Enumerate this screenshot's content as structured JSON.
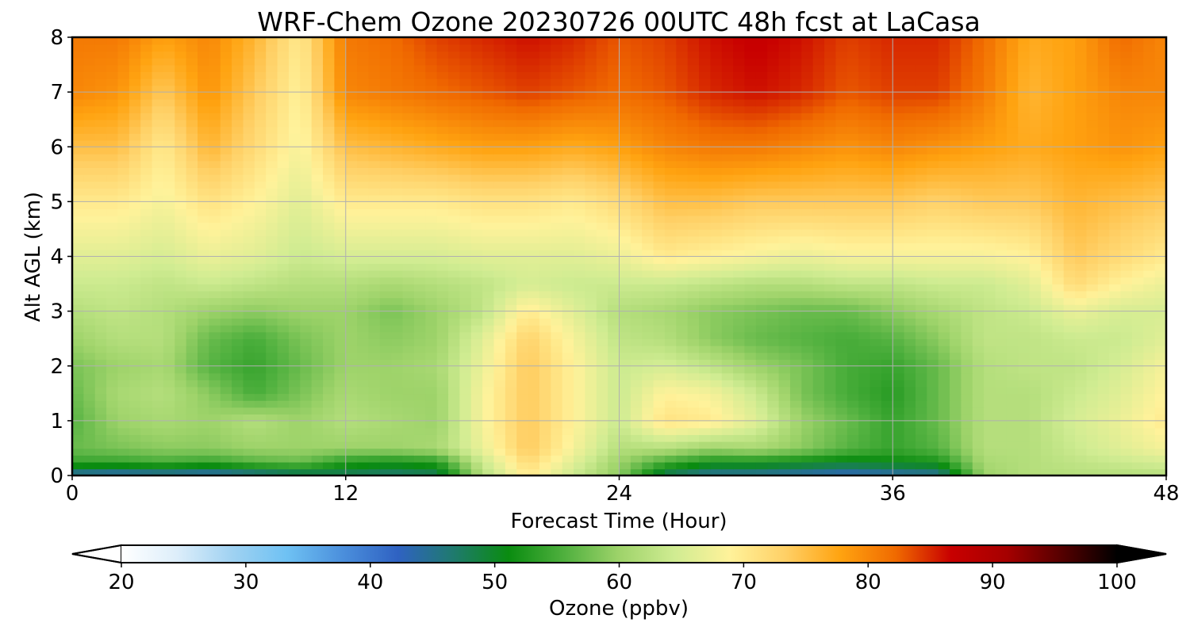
{
  "chart_data": {
    "type": "heatmap",
    "title": "WRF-Chem Ozone  20230726 00UTC 48h fcst at LaCasa",
    "xlabel": "Forecast Time (Hour)",
    "ylabel": "Alt AGL (km)",
    "xlim": [
      0,
      48
    ],
    "ylim": [
      0,
      8
    ],
    "xticks": [
      "0",
      "12",
      "24",
      "36",
      "48"
    ],
    "yticks": [
      "0",
      "1",
      "2",
      "3",
      "4",
      "5",
      "6",
      "7",
      "8"
    ],
    "grid": true,
    "x": [
      0,
      2,
      4,
      6,
      8,
      10,
      12,
      14,
      16,
      18,
      20,
      22,
      24,
      26,
      28,
      30,
      32,
      34,
      36,
      38,
      40,
      42,
      44,
      46,
      48
    ],
    "y": [
      0,
      0.25,
      0.5,
      1,
      1.5,
      2,
      2.5,
      3,
      3.5,
      4,
      5,
      6,
      7,
      8
    ],
    "z": [
      [
        43,
        42,
        43,
        42,
        44,
        46,
        47,
        46,
        47,
        62,
        70,
        64,
        59,
        47,
        44,
        44,
        43,
        42,
        43,
        44,
        60,
        62,
        62,
        62,
        62
      ],
      [
        54,
        54,
        55,
        54,
        56,
        57,
        53,
        52,
        53,
        64,
        72,
        66,
        60,
        55,
        52,
        52,
        51,
        50,
        51,
        52,
        61,
        62,
        63,
        64,
        65
      ],
      [
        57,
        58,
        59,
        59,
        60,
        60,
        60,
        60,
        61,
        67,
        74,
        68,
        62,
        62,
        60,
        61,
        59,
        56,
        54,
        56,
        62,
        62,
        64,
        66,
        68
      ],
      [
        56,
        60,
        61,
        60,
        62,
        60,
        62,
        61,
        60,
        68,
        74,
        69,
        64,
        71,
        70,
        66,
        60,
        57,
        54,
        57,
        62,
        62,
        65,
        67,
        70
      ],
      [
        57,
        61,
        62,
        59,
        55,
        58,
        61,
        60,
        60,
        68,
        74,
        69,
        64,
        69,
        68,
        64,
        58,
        55,
        53,
        57,
        62,
        62,
        64,
        66,
        69
      ],
      [
        58,
        60,
        61,
        56,
        54,
        57,
        60,
        60,
        61,
        67,
        74,
        69,
        64,
        65,
        63,
        60,
        58,
        55,
        54,
        57,
        62,
        63,
        63,
        65,
        68
      ],
      [
        60,
        62,
        62,
        57,
        55,
        58,
        60,
        59,
        60,
        66,
        73,
        68,
        63,
        62,
        59,
        57,
        56,
        55,
        56,
        59,
        63,
        63,
        64,
        64,
        66
      ],
      [
        62,
        63,
        62,
        60,
        59,
        60,
        60,
        58,
        60,
        63,
        70,
        66,
        62,
        61,
        59,
        58,
        57,
        57,
        59,
        61,
        63,
        64,
        67,
        65,
        65
      ],
      [
        64,
        64,
        63,
        64,
        63,
        62,
        62,
        61,
        62,
        63,
        65,
        64,
        64,
        64,
        63,
        62,
        62,
        63,
        63,
        64,
        64,
        66,
        72,
        69,
        67
      ],
      [
        66,
        66,
        65,
        67,
        66,
        64,
        65,
        65,
        65,
        66,
        66,
        66,
        67,
        70,
        69,
        68,
        67,
        68,
        68,
        68,
        68,
        69,
        74,
        72,
        70
      ],
      [
        70,
        70,
        68,
        71,
        69,
        66,
        70,
        70,
        70,
        71,
        71,
        70,
        72,
        75,
        75,
        74,
        74,
        74,
        74,
        73,
        74,
        74,
        76,
        75,
        74
      ],
      [
        75,
        75,
        70,
        76,
        72,
        68,
        75,
        76,
        77,
        78,
        78,
        77,
        78,
        80,
        81,
        81,
        80,
        79,
        80,
        79,
        78,
        77,
        78,
        79,
        78
      ],
      [
        80,
        79,
        74,
        79,
        74,
        69,
        80,
        81,
        82,
        83,
        84,
        83,
        82,
        83,
        85,
        86,
        85,
        83,
        84,
        84,
        81,
        76,
        78,
        80,
        80
      ],
      [
        81,
        81,
        78,
        80,
        76,
        70,
        81,
        82,
        84,
        85,
        86,
        85,
        83,
        84,
        86,
        87,
        86,
        84,
        85,
        85,
        82,
        77,
        78,
        82,
        80
      ]
    ],
    "colorbar": {
      "label": "Ozone  (ppbv)",
      "min": 20,
      "max": 100,
      "extend": "both",
      "ticks": [
        "20",
        "30",
        "40",
        "50",
        "60",
        "70",
        "80",
        "90",
        "100"
      ],
      "colors": [
        "#ffffff",
        "#ddeefa",
        "#a0d2f2",
        "#6ec1f3",
        "#4b8fdc",
        "#2f62c2",
        "#1f7a6e",
        "#0a8c10",
        "#4fb03e",
        "#9ed36a",
        "#d0ec92",
        "#fff29a",
        "#ffd066",
        "#ffa310",
        "#f06a00",
        "#c80000",
        "#a60000",
        "#550000",
        "#000000"
      ]
    }
  }
}
